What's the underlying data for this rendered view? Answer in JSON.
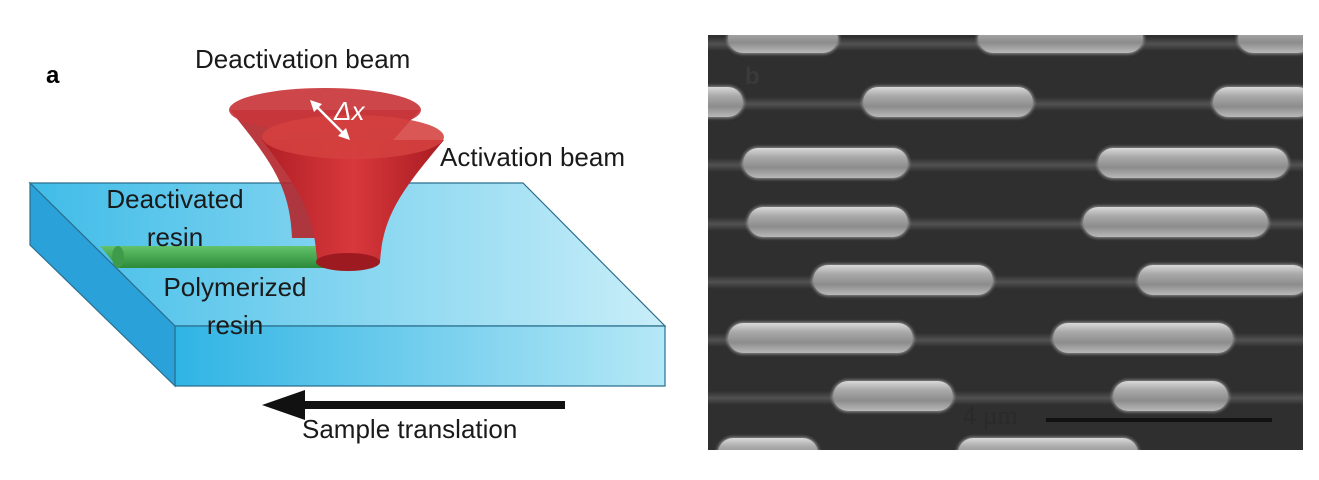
{
  "panel_a": {
    "letter": "a",
    "labels": {
      "deactivation_beam": "Deactivation beam",
      "delta_x": "Δx",
      "activation_beam": "Activation beam",
      "deactivated_resin_line1": "Deactivated",
      "deactivated_resin_line2": "resin",
      "polymerized_resin_line1": "Polymerized",
      "polymerized_resin_line2": "resin",
      "sample_translation": "Sample translation"
    },
    "colors": {
      "resin_top": "#4cc3ea",
      "resin_front": "#39bce6",
      "resin_side": "#2a9fd6",
      "beam": "#c3272c",
      "polymer_line": "#3aa84a",
      "arrow": "#111111"
    }
  },
  "panel_b": {
    "letter": "b",
    "scale_bar_label": "4 µm",
    "background": "#2f2f2f"
  }
}
